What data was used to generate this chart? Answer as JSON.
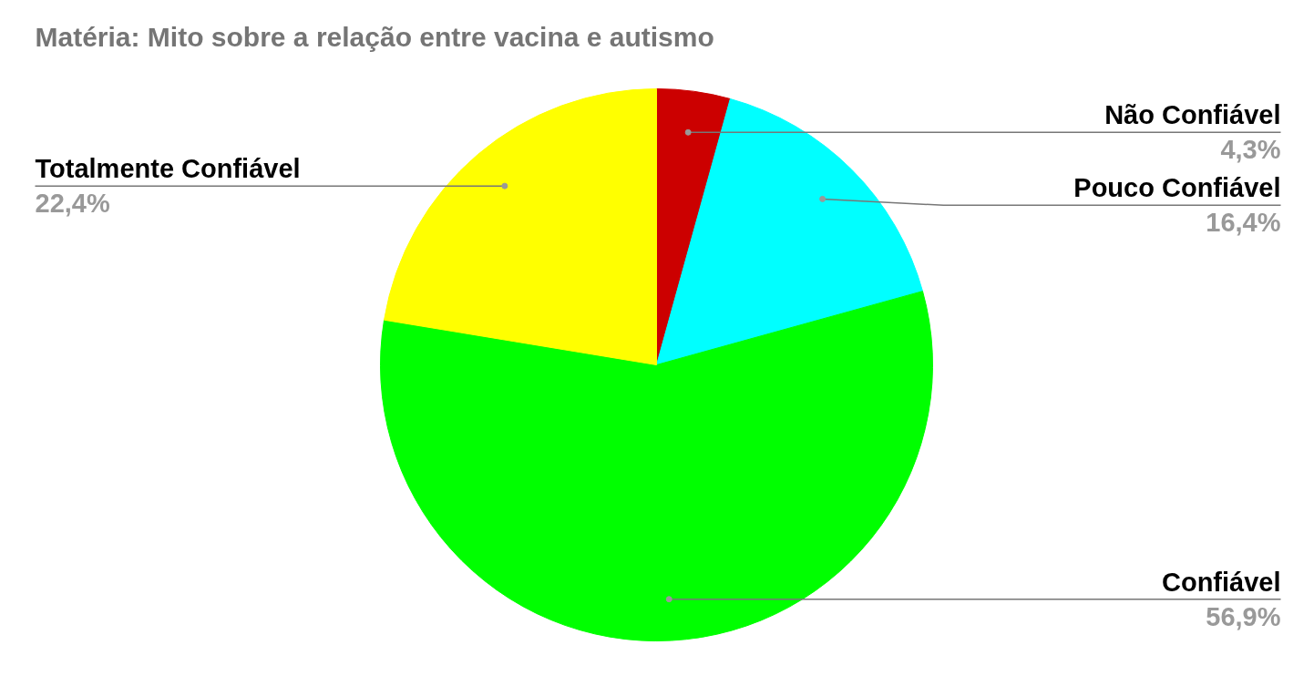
{
  "chart_data": {
    "type": "pie",
    "title": "Matéria: Mito sobre a relação entre vacina e autismo",
    "categories": [
      "Não Confiável",
      "Pouco Confiável",
      "Confiável",
      "Totalmente Confiável"
    ],
    "values": [
      4.3,
      16.4,
      56.9,
      22.4
    ],
    "colors": [
      "#cc0000",
      "#00ffff",
      "#00ff00",
      "#ffff00"
    ],
    "value_labels": [
      "4,3%",
      "16,4%",
      "56,9%",
      "22,4%"
    ]
  }
}
